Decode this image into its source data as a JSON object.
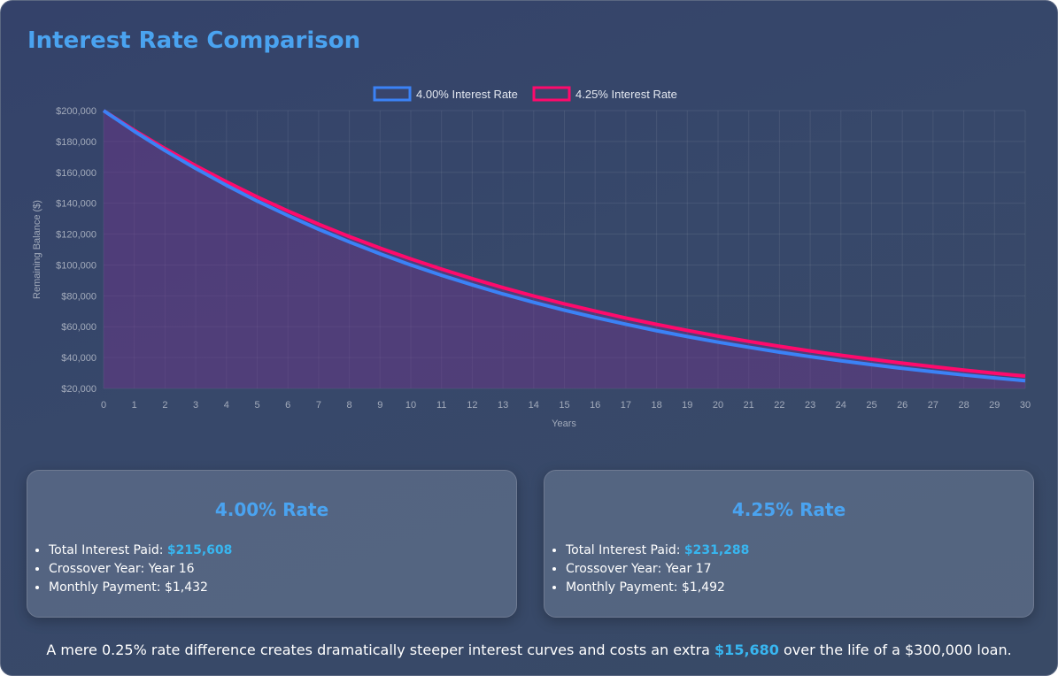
{
  "title": "Interest Rate Comparison",
  "chart_data": {
    "type": "line",
    "x": [
      0,
      1,
      2,
      3,
      4,
      5,
      6,
      7,
      8,
      9,
      10,
      11,
      12,
      13,
      14,
      15,
      16,
      17,
      18,
      19,
      20,
      21,
      22,
      23,
      24,
      25,
      26,
      27,
      28,
      29,
      30
    ],
    "series": [
      {
        "name": "4.00% Interest Rate",
        "color": "#3b82f6",
        "values": [
          200000,
          186600,
          174100,
          162500,
          151600,
          141400,
          132000,
          123100,
          114900,
          107200,
          100000,
          93300,
          87100,
          81200,
          75800,
          70700,
          66000,
          61600,
          57400,
          53600,
          50000,
          46700,
          43500,
          40600,
          37900,
          35400,
          33000,
          30800,
          28700,
          26800,
          25000
        ]
      },
      {
        "name": "4.25% Interest Rate",
        "color": "#ff0a6c",
        "values": [
          200000,
          187300,
          175400,
          164300,
          153900,
          144100,
          135000,
          126400,
          118400,
          110900,
          103900,
          97300,
          91100,
          85300,
          79900,
          74800,
          70100,
          65600,
          61500,
          57600,
          53900,
          50500,
          47300,
          44300,
          41500,
          38900,
          36400,
          34100,
          31900,
          29900,
          28000
        ]
      }
    ],
    "xlabel": "Years",
    "ylabel": "Remaining Balance ($)",
    "ylim": [
      20000,
      200000
    ],
    "yticks": [
      "$200,000",
      "$180,000",
      "$160,000",
      "$140,000",
      "$120,000",
      "$100,000",
      "$80,000",
      "$60,000",
      "$40,000",
      "$20,000"
    ],
    "legend": "top-center",
    "grid": true
  },
  "cards": [
    {
      "heading": "4.00% Rate",
      "interest_label": "Total Interest Paid: ",
      "interest_value": "$215,608",
      "crossover": "Crossover Year: Year 16",
      "payment": "Monthly Payment: $1,432"
    },
    {
      "heading": "4.25% Rate",
      "interest_label": "Total Interest Paid: ",
      "interest_value": "$231,288",
      "crossover": "Crossover Year: Year 17",
      "payment": "Monthly Payment: $1,492"
    }
  ],
  "footer": {
    "before": "A mere 0.25% rate difference creates dramatically steeper interest curves and costs an extra ",
    "highlight": "$15,680",
    "after": " over the life of a $300,000 loan."
  }
}
